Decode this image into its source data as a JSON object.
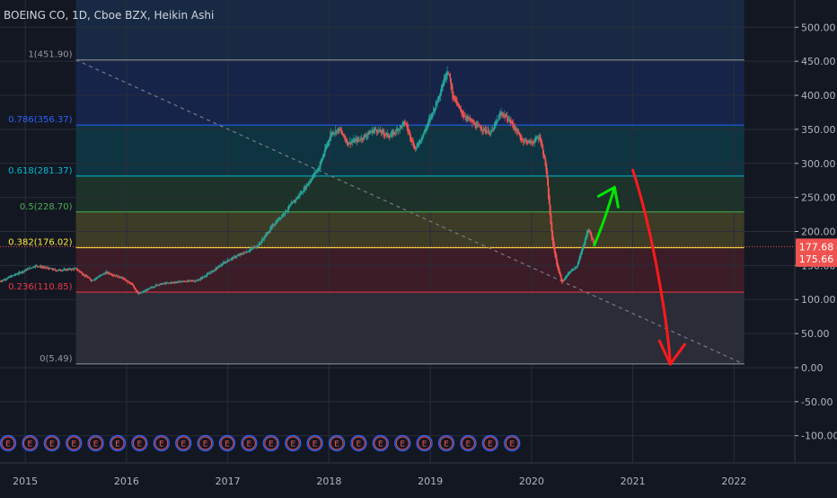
{
  "header": {
    "symbol_title": "BOEING CO, 1D, Cboe BZX, Heikin Ashi"
  },
  "colors": {
    "background": "#131722",
    "up": "#26a69a",
    "down": "#ef5350",
    "grid": "#2a2e39",
    "axis_text": "#b2b5be",
    "trend_line": "#787b86",
    "arrow_up": "#00e600",
    "arrow_down": "#ff1a1a"
  },
  "chart_data": {
    "type": "candlestick",
    "title": "BOEING CO, 1D, Cboe BZX, Heikin Ashi",
    "xlabel": "",
    "ylabel": "",
    "x_ticks": [
      "2015",
      "2016",
      "2017",
      "2018",
      "2019",
      "2020",
      "2021",
      "2022"
    ],
    "y_ticks": [
      500,
      450,
      400,
      350,
      300,
      250,
      200,
      150,
      100,
      50,
      0,
      -50,
      -100
    ],
    "y_tick_labels": [
      "500.00",
      "450.00",
      "400.00",
      "350.00",
      "300.00",
      "250.00",
      "200.00",
      "150.00",
      "100.00",
      "50.00",
      "0.00",
      "-50.00",
      "-100.00"
    ],
    "ylim": [
      -140,
      540
    ],
    "xlim": [
      2014.75,
      2022.6
    ],
    "grid": true,
    "price_labels": [
      {
        "value": 177.68,
        "text": "177.68",
        "color": "#ef5350"
      },
      {
        "value": 175.66,
        "text": "175.66",
        "color": "#ef5350"
      }
    ],
    "price_path": [
      [
        2014.75,
        127
      ],
      [
        2014.95,
        140
      ],
      [
        2015.1,
        150
      ],
      [
        2015.3,
        143
      ],
      [
        2015.5,
        145
      ],
      [
        2015.65,
        128
      ],
      [
        2015.8,
        140
      ],
      [
        2015.95,
        132
      ],
      [
        2016.05,
        122
      ],
      [
        2016.12,
        108
      ],
      [
        2016.3,
        122
      ],
      [
        2016.5,
        126
      ],
      [
        2016.7,
        128
      ],
      [
        2016.85,
        142
      ],
      [
        2017.0,
        158
      ],
      [
        2017.15,
        168
      ],
      [
        2017.3,
        180
      ],
      [
        2017.45,
        210
      ],
      [
        2017.6,
        235
      ],
      [
        2017.75,
        262
      ],
      [
        2017.9,
        295
      ],
      [
        2018.02,
        345
      ],
      [
        2018.1,
        350
      ],
      [
        2018.18,
        330
      ],
      [
        2018.3,
        335
      ],
      [
        2018.45,
        350
      ],
      [
        2018.6,
        340
      ],
      [
        2018.75,
        360
      ],
      [
        2018.85,
        320
      ],
      [
        2018.95,
        350
      ],
      [
        2019.05,
        385
      ],
      [
        2019.17,
        440
      ],
      [
        2019.22,
        400
      ],
      [
        2019.3,
        375
      ],
      [
        2019.45,
        355
      ],
      [
        2019.6,
        345
      ],
      [
        2019.7,
        375
      ],
      [
        2019.8,
        360
      ],
      [
        2019.9,
        335
      ],
      [
        2020.0,
        330
      ],
      [
        2020.08,
        340
      ],
      [
        2020.14,
        295
      ],
      [
        2020.2,
        190
      ],
      [
        2020.25,
        150
      ],
      [
        2020.3,
        125
      ],
      [
        2020.37,
        140
      ],
      [
        2020.45,
        150
      ],
      [
        2020.5,
        175
      ],
      [
        2020.56,
        205
      ],
      [
        2020.62,
        178
      ]
    ],
    "fibonacci": {
      "levels": [
        {
          "ratio": "1",
          "value": 451.9,
          "label": "1(451.90)",
          "color": "#9598a1"
        },
        {
          "ratio": "0.786",
          "value": 356.37,
          "label": "0.786(356.37)",
          "color": "#2962ff"
        },
        {
          "ratio": "0.618",
          "value": 281.37,
          "label": "0.618(281.37)",
          "color": "#00bcd4"
        },
        {
          "ratio": "0.5",
          "value": 228.7,
          "label": "0.5(228.70)",
          "color": "#4caf50"
        },
        {
          "ratio": "0.382",
          "value": 176.02,
          "label": "0.382(176.02)",
          "color": "#ffeb3b"
        },
        {
          "ratio": "0.236",
          "value": 110.85,
          "label": "0.236(110.85)",
          "color": "#f23645"
        },
        {
          "ratio": "0",
          "value": 5.49,
          "label": "0(5.49)",
          "color": "#9598a1"
        }
      ],
      "top_zone_color": "#1e3a5f",
      "x_start": 2015.5,
      "x_end": 2022.1
    },
    "trend_line": {
      "from": [
        2015.5,
        452
      ],
      "to": [
        2022.1,
        5
      ]
    },
    "annotations": [
      {
        "type": "arrow",
        "color": "#00e600",
        "points": [
          [
            2020.62,
            180
          ],
          [
            2020.72,
            215
          ],
          [
            2020.82,
            265
          ]
        ],
        "head": "up"
      },
      {
        "type": "arrow",
        "color": "#ff1a1a",
        "points": [
          [
            2021.0,
            290
          ],
          [
            2021.2,
            200
          ],
          [
            2021.35,
            60
          ],
          [
            2021.37,
            5
          ]
        ],
        "head": "down"
      }
    ],
    "earnings_markers": {
      "label": "E",
      "count": 24
    }
  }
}
